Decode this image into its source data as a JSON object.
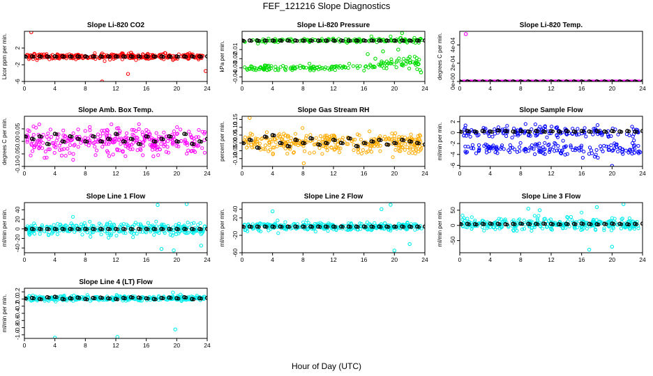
{
  "figure": {
    "title": "FEF_121216  Slope Diagnostics",
    "xlabel": "Hour of Day (UTC)"
  },
  "colors": {
    "hourly_mean": "#000000",
    "frame": "#000000"
  },
  "chart_data": [
    {
      "id": "co2",
      "type": "scatter",
      "title": "Slope Li-820 CO2",
      "ylabel": "Licor ppm per min.",
      "xlim": [
        0,
        24
      ],
      "ylim": [
        -6,
        6
      ],
      "xticks": [
        0,
        4,
        8,
        12,
        16,
        20,
        24
      ],
      "yticks": [
        -6,
        -2,
        2
      ],
      "color": "#ff0000",
      "spread": 0.7,
      "bands": [
        {
          "center": 0.0,
          "spread": 0.6
        }
      ],
      "outliers": [
        [
          0.9,
          5.8
        ],
        [
          10.2,
          -6.0
        ],
        [
          13.6,
          -4.2
        ],
        [
          23.8,
          -3.5
        ],
        [
          14.0,
          0.9
        ]
      ],
      "hourly_means": [
        0,
        0,
        0,
        0,
        0,
        0,
        0,
        0,
        0,
        0,
        0,
        0,
        0,
        0,
        0,
        0,
        0,
        0,
        0,
        0,
        0,
        0,
        0,
        0,
        0
      ]
    },
    {
      "id": "pressure",
      "type": "scatter",
      "title": "Slope Li-820 Pressure",
      "ylabel": "kPa per min.",
      "xlim": [
        0,
        24
      ],
      "ylim": [
        -0.045,
        0.01
      ],
      "xticks": [
        0,
        4,
        8,
        12,
        16,
        20,
        24
      ],
      "yticks": [
        -0.04,
        -0.03,
        -0.02,
        -0.01
      ],
      "color": "#00dd00",
      "spread": 0.002,
      "bands": [
        {
          "center": 0.0,
          "spread": 0.0025
        },
        {
          "center": -0.03,
          "spread": 0.003
        }
      ],
      "outliers": [
        [
          16.5,
          -0.015
        ],
        [
          17.5,
          -0.02
        ],
        [
          18.5,
          -0.012
        ],
        [
          19.2,
          -0.025
        ],
        [
          20.5,
          -0.01
        ],
        [
          22.0,
          -0.018
        ],
        [
          23.5,
          -0.035
        ],
        [
          21.0,
          0.008
        ]
      ],
      "hourly_means": [
        0,
        0,
        0,
        0,
        0,
        0,
        0,
        0,
        0,
        0,
        0,
        0,
        0,
        0,
        0,
        0,
        0,
        0,
        0,
        0,
        0,
        0,
        0,
        0,
        0
      ]
    },
    {
      "id": "temp",
      "type": "scatter",
      "title": "Slope Li-820 Temp.",
      "ylabel": "degrees C per min.",
      "xlim": [
        0,
        24
      ],
      "ylim": [
        0,
        0.00055
      ],
      "xticks": [
        0,
        4,
        8,
        12,
        16,
        20,
        24
      ],
      "yticks": [
        0,
        0.0002,
        0.0004
      ],
      "ytick_labels": [
        "0e+00",
        "2e-04",
        "4e-04"
      ],
      "color": "#ff00ff",
      "spread": 0.0,
      "bands": [
        {
          "center": 0.0,
          "spread": 0.0
        }
      ],
      "outliers": [
        [
          0.8,
          0.00052
        ]
      ],
      "hourly_means": [
        0,
        0,
        0,
        0,
        0,
        0,
        0,
        0,
        0,
        0,
        0,
        0,
        0,
        0,
        0,
        0,
        0,
        0,
        0,
        0,
        0,
        0,
        0,
        0,
        0
      ]
    },
    {
      "id": "ambtemp",
      "type": "scatter",
      "title": "Slope Amb. Box Temp.",
      "ylabel": "degrees C per min.",
      "xlim": [
        0,
        24
      ],
      "ylim": [
        -0.1,
        0.1
      ],
      "xticks": [
        0,
        4,
        8,
        12,
        16,
        20,
        24
      ],
      "yticks": [
        -0.1,
        -0.05,
        0,
        0.05
      ],
      "ytick_labels": [
        "-0.10",
        "-0.05",
        "0.00",
        "0.05"
      ],
      "color": "#ff00ff",
      "spread": 0.06,
      "bands": [
        {
          "center": 0.0,
          "spread": 0.05
        }
      ],
      "outliers": [],
      "hourly_means": [
        0.02,
        0.01,
        0.02,
        -0.01,
        0.03,
        0.0,
        0.02,
        0.01,
        0.0,
        0.02,
        0.0,
        0.01,
        0.03,
        0.0,
        0.01,
        -0.01,
        0.02,
        0.0,
        0.01,
        0.02,
        0.0,
        0.03,
        -0.01,
        0.0,
        0.01
      ]
    },
    {
      "id": "rh",
      "type": "scatter",
      "title": "Slope Gas Stream RH",
      "ylabel": "percent per min.",
      "xlim": [
        0,
        24
      ],
      "ylim": [
        -0.15,
        0.17
      ],
      "xticks": [
        0,
        4,
        8,
        12,
        16,
        20,
        24
      ],
      "yticks": [
        -0.1,
        -0.05,
        0,
        0.05,
        0.1,
        0.15
      ],
      "ytick_labels": [
        "-0.10",
        "-0.05",
        "0.00",
        "0.05",
        "0.10",
        "0.15"
      ],
      "color": "#ffaa00",
      "spread": 0.07,
      "bands": [
        {
          "center": 0.0,
          "spread": 0.055
        }
      ],
      "outliers": [
        [
          1.0,
          0.16
        ],
        [
          8.1,
          -0.13
        ]
      ],
      "hourly_means": [
        0.0,
        0.02,
        -0.03,
        0.04,
        0.05,
        0.0,
        -0.02,
        0.02,
        0.0,
        0.03,
        -0.01,
        0.0,
        0.02,
        0.0,
        0.03,
        -0.02,
        0.0,
        0.01,
        0.02,
        -0.01,
        0.0,
        0.02,
        0.01,
        0.0,
        -0.01
      ]
    },
    {
      "id": "sampleflow",
      "type": "scatter",
      "title": "Slope Sample Flow",
      "ylabel": "ml/min per min.",
      "xlim": [
        0,
        24
      ],
      "ylim": [
        -6.2,
        3
      ],
      "xticks": [
        0,
        4,
        8,
        12,
        16,
        20,
        24
      ],
      "yticks": [
        -6,
        -4,
        -2,
        0,
        2
      ],
      "color": "#0000ff",
      "spread": 1.4,
      "bands": [
        {
          "center": 0.2,
          "spread": 1.0
        },
        {
          "center": -3.0,
          "spread": 1.1
        }
      ],
      "outliers": [
        [
          20.0,
          -6.1
        ]
      ],
      "hourly_means": [
        0.2,
        0.3,
        0.2,
        0.3,
        0.2,
        0.4,
        0.3,
        0.2,
        0.3,
        0.2,
        0.3,
        0.2,
        0.3,
        0.2,
        0.3,
        0.2,
        0.3,
        0.2,
        0.3,
        0.2,
        0.3,
        0.2,
        0.3,
        0.2,
        0.3
      ]
    },
    {
      "id": "line1",
      "type": "scatter",
      "title": "Slope Line 1 Flow",
      "ylabel": "ml/min per min.",
      "xlim": [
        0,
        24
      ],
      "ylim": [
        -50,
        55
      ],
      "xticks": [
        0,
        4,
        8,
        12,
        16,
        20,
        24
      ],
      "yticks": [
        -40,
        -20,
        0,
        20,
        40
      ],
      "color": "#00eeee",
      "spread": 14,
      "bands": [
        {
          "center": 0.0,
          "spread": 12
        }
      ],
      "outliers": [
        [
          17.5,
          50
        ],
        [
          21.3,
          52
        ],
        [
          18.0,
          -42
        ],
        [
          19.6,
          -45
        ],
        [
          23.2,
          -35
        ]
      ],
      "hourly_means": [
        0,
        0,
        0,
        0,
        0,
        0,
        0,
        0,
        0,
        0,
        0,
        0,
        0,
        0,
        0,
        0,
        0,
        0,
        0,
        0,
        0,
        0,
        0,
        0,
        0
      ]
    },
    {
      "id": "line2",
      "type": "scatter",
      "title": "Slope Line 2 Flow",
      "ylabel": "ml/min per min.",
      "xlim": [
        0,
        24
      ],
      "ylim": [
        -60,
        55
      ],
      "xticks": [
        0,
        4,
        8,
        12,
        16,
        20,
        24
      ],
      "yticks": [
        -60,
        -20,
        20,
        40
      ],
      "color": "#00eeee",
      "spread": 10,
      "bands": [
        {
          "center": 0.0,
          "spread": 8
        }
      ],
      "outliers": [
        [
          19.5,
          50
        ],
        [
          18.3,
          40
        ],
        [
          4.0,
          35
        ],
        [
          20.0,
          -55
        ],
        [
          22.0,
          -40
        ]
      ],
      "hourly_means": [
        0,
        0,
        0,
        0,
        0,
        0,
        0,
        0,
        0,
        0,
        0,
        0,
        0,
        0,
        0,
        0,
        0,
        0,
        0,
        0,
        0,
        0,
        0,
        0,
        0
      ]
    },
    {
      "id": "line3",
      "type": "scatter",
      "title": "Slope Line 3 Flow",
      "ylabel": "ml/min per min.",
      "xlim": [
        0,
        24
      ],
      "ylim": [
        -90,
        75
      ],
      "xticks": [
        0,
        4,
        8,
        12,
        16,
        20,
        24
      ],
      "yticks": [
        -50,
        0,
        50
      ],
      "color": "#00eeee",
      "spread": 22,
      "bands": [
        {
          "center": 5.0,
          "spread": 18
        }
      ],
      "outliers": [
        [
          9.0,
          55
        ],
        [
          18.0,
          60
        ],
        [
          21.5,
          70
        ],
        [
          17.0,
          -80
        ],
        [
          20.0,
          -70
        ],
        [
          10.5,
          50
        ]
      ],
      "hourly_means": [
        5,
        5,
        4,
        5,
        6,
        5,
        4,
        5,
        6,
        5,
        5,
        6,
        5,
        4,
        5,
        5,
        6,
        5,
        4,
        5,
        6,
        5,
        4,
        5,
        6
      ]
    },
    {
      "id": "line4",
      "type": "scatter",
      "title": "Slope Line 4 (LT) Flow",
      "ylabel": "ml/min per min.",
      "xlim": [
        0,
        24
      ],
      "ylim": [
        -1.1,
        0.3
      ],
      "xticks": [
        0,
        4,
        8,
        12,
        16,
        20,
        24
      ],
      "yticks": [
        -1.0,
        -0.8,
        -0.6,
        -0.4,
        -0.2,
        0.0,
        0.2
      ],
      "ytick_labels": [
        "-1.0",
        "-0.8",
        "-0.6",
        "-0.4",
        "-0.2",
        "0.0",
        "0.2"
      ],
      "color": "#00eeee",
      "spread": 0.08,
      "bands": [
        {
          "center": 0.02,
          "spread": 0.06
        }
      ],
      "outliers": [
        [
          4.0,
          -1.08
        ],
        [
          12.2,
          -1.06
        ],
        [
          19.8,
          -0.85
        ],
        [
          19.5,
          0.18
        ],
        [
          20.5,
          0.12
        ]
      ],
      "hourly_means": [
        0.02,
        0.03,
        0.0,
        0.05,
        0.06,
        0.0,
        0.02,
        0.04,
        0.0,
        0.03,
        0.04,
        0.02,
        0.0,
        0.03,
        0.05,
        0.04,
        0.02,
        0.0,
        0.03,
        0.04,
        0.02,
        0.05,
        0.0,
        0.02,
        0.03
      ]
    }
  ]
}
